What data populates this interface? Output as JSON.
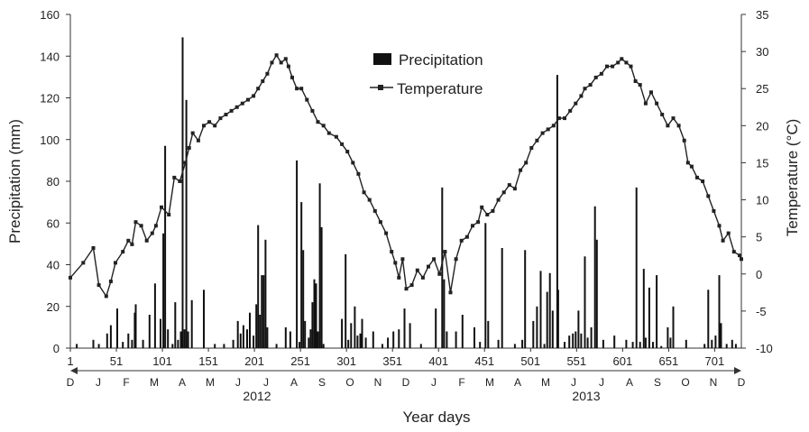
{
  "chart_data": {
    "type": "bar+line",
    "xlabel": "Year days",
    "ylabel_left": "Precipitation (mm)",
    "ylabel_right": "Temperature (°C)",
    "xlim": [
      1,
      730
    ],
    "ylim_left": [
      0,
      160
    ],
    "ylim_right": [
      -10,
      35
    ],
    "x_ticks": [
      1,
      51,
      101,
      151,
      201,
      251,
      301,
      351,
      401,
      451,
      501,
      551,
      601,
      651,
      701
    ],
    "y_ticks_left": [
      0,
      20,
      40,
      60,
      80,
      100,
      120,
      140,
      160
    ],
    "y_ticks_right": [
      -10,
      -5,
      0,
      5,
      10,
      15,
      20,
      25,
      30,
      35
    ],
    "months": [
      "D",
      "J",
      "F",
      "M",
      "A",
      "M",
      "J",
      "J",
      "A",
      "S",
      "O",
      "N",
      "D",
      "J",
      "F",
      "M",
      "A",
      "M",
      "J",
      "J",
      "A",
      "S",
      "O",
      "N",
      "D"
    ],
    "years": [
      {
        "label": "2012",
        "x": 285
      },
      {
        "label": "2013",
        "x": 650
      }
    ],
    "legend": {
      "placement": "top-center",
      "precipitation_label": "Precipitation",
      "temperature_label": "Temperature"
    },
    "series": [
      {
        "name": "Precipitation",
        "kind": "bar",
        "color": "#111111",
        "points": [
          [
            8,
            2
          ],
          [
            26,
            4
          ],
          [
            32,
            2
          ],
          [
            41,
            7
          ],
          [
            45,
            11
          ],
          [
            52,
            19
          ],
          [
            58,
            3
          ],
          [
            64,
            7
          ],
          [
            68,
            4
          ],
          [
            71,
            17
          ],
          [
            72,
            21
          ],
          [
            80,
            4
          ],
          [
            87,
            16
          ],
          [
            93,
            31
          ],
          [
            99,
            14
          ],
          [
            102,
            55
          ],
          [
            104,
            97
          ],
          [
            107,
            9
          ],
          [
            112,
            2
          ],
          [
            115,
            22
          ],
          [
            118,
            4
          ],
          [
            121,
            8
          ],
          [
            123,
            149
          ],
          [
            125,
            9
          ],
          [
            127,
            119
          ],
          [
            129,
            8
          ],
          [
            133,
            23
          ],
          [
            146,
            28
          ],
          [
            158,
            2
          ],
          [
            168,
            2
          ],
          [
            178,
            4
          ],
          [
            183,
            13
          ],
          [
            186,
            7
          ],
          [
            189,
            11
          ],
          [
            193,
            9
          ],
          [
            196,
            17
          ],
          [
            200,
            6
          ],
          [
            203,
            21
          ],
          [
            205,
            59
          ],
          [
            207,
            16
          ],
          [
            209,
            35
          ],
          [
            211,
            35
          ],
          [
            213,
            52
          ],
          [
            215,
            10
          ],
          [
            225,
            2
          ],
          [
            235,
            10
          ],
          [
            240,
            8
          ],
          [
            247,
            90
          ],
          [
            250,
            3
          ],
          [
            252,
            70
          ],
          [
            254,
            47
          ],
          [
            256,
            13
          ],
          [
            260,
            5
          ],
          [
            262,
            9
          ],
          [
            264,
            22
          ],
          [
            266,
            33
          ],
          [
            268,
            31
          ],
          [
            270,
            8
          ],
          [
            272,
            79
          ],
          [
            274,
            58
          ],
          [
            276,
            2
          ],
          [
            296,
            14
          ],
          [
            300,
            45
          ],
          [
            303,
            4
          ],
          [
            306,
            12
          ],
          [
            310,
            20
          ],
          [
            313,
            6
          ],
          [
            316,
            7
          ],
          [
            318,
            14
          ],
          [
            322,
            5
          ],
          [
            330,
            8
          ],
          [
            340,
            2
          ],
          [
            346,
            5
          ],
          [
            352,
            8
          ],
          [
            358,
            9
          ],
          [
            364,
            19
          ],
          [
            370,
            12
          ],
          [
            382,
            2
          ],
          [
            398,
            19
          ],
          [
            405,
            77
          ],
          [
            407,
            33
          ],
          [
            410,
            8
          ],
          [
            420,
            8
          ],
          [
            427,
            16
          ],
          [
            440,
            10
          ],
          [
            446,
            3
          ],
          [
            452,
            60
          ],
          [
            455,
            13
          ],
          [
            466,
            4
          ],
          [
            470,
            48
          ],
          [
            484,
            2
          ],
          [
            492,
            4
          ],
          [
            495,
            47
          ],
          [
            504,
            13
          ],
          [
            508,
            20
          ],
          [
            512,
            37
          ],
          [
            516,
            2
          ],
          [
            519,
            27
          ],
          [
            522,
            36
          ],
          [
            525,
            18
          ],
          [
            530,
            131
          ],
          [
            531,
            28
          ],
          [
            538,
            3
          ],
          [
            543,
            6
          ],
          [
            547,
            7
          ],
          [
            550,
            8
          ],
          [
            553,
            18
          ],
          [
            556,
            7
          ],
          [
            560,
            44
          ],
          [
            563,
            5
          ],
          [
            567,
            10
          ],
          [
            571,
            68
          ],
          [
            573,
            52
          ],
          [
            580,
            4
          ],
          [
            592,
            6
          ],
          [
            605,
            4
          ],
          [
            612,
            3
          ],
          [
            616,
            77
          ],
          [
            620,
            3
          ],
          [
            624,
            38
          ],
          [
            626,
            5
          ],
          [
            630,
            29
          ],
          [
            634,
            3
          ],
          [
            638,
            35
          ],
          [
            643,
            1
          ],
          [
            650,
            10
          ],
          [
            653,
            5
          ],
          [
            656,
            20
          ],
          [
            670,
            4
          ],
          [
            690,
            2
          ],
          [
            694,
            28
          ],
          [
            698,
            4
          ],
          [
            702,
            6
          ],
          [
            706,
            35
          ],
          [
            708,
            12
          ],
          [
            714,
            2
          ],
          [
            720,
            4
          ],
          [
            724,
            2
          ]
        ]
      },
      {
        "name": "Temperature",
        "kind": "line",
        "color": "#222222",
        "points": [
          [
            1,
            -0.5
          ],
          [
            15,
            1.5
          ],
          [
            26,
            3.5
          ],
          [
            32,
            -1.5
          ],
          [
            40,
            -3
          ],
          [
            45,
            -1
          ],
          [
            50,
            1.5
          ],
          [
            58,
            3
          ],
          [
            64,
            4.5
          ],
          [
            68,
            4
          ],
          [
            72,
            7
          ],
          [
            78,
            6.5
          ],
          [
            84,
            4.5
          ],
          [
            90,
            5.5
          ],
          [
            94,
            6.5
          ],
          [
            100,
            9
          ],
          [
            108,
            8
          ],
          [
            114,
            13
          ],
          [
            120,
            12.5
          ],
          [
            126,
            15
          ],
          [
            130,
            17
          ],
          [
            134,
            19
          ],
          [
            140,
            18
          ],
          [
            146,
            20
          ],
          [
            152,
            20.5
          ],
          [
            158,
            20
          ],
          [
            164,
            21
          ],
          [
            170,
            21.5
          ],
          [
            176,
            22
          ],
          [
            182,
            22.5
          ],
          [
            188,
            23
          ],
          [
            194,
            23.5
          ],
          [
            200,
            24
          ],
          [
            205,
            25
          ],
          [
            210,
            26
          ],
          [
            215,
            27
          ],
          [
            220,
            28.5
          ],
          [
            225,
            29.5
          ],
          [
            230,
            28.5
          ],
          [
            235,
            29
          ],
          [
            238,
            28
          ],
          [
            242,
            26.5
          ],
          [
            247,
            25
          ],
          [
            252,
            25
          ],
          [
            258,
            23.5
          ],
          [
            264,
            22
          ],
          [
            270,
            20.5
          ],
          [
            276,
            20
          ],
          [
            282,
            19
          ],
          [
            290,
            18.5
          ],
          [
            296,
            17.5
          ],
          [
            302,
            16.5
          ],
          [
            308,
            15
          ],
          [
            314,
            13.5
          ],
          [
            320,
            11
          ],
          [
            326,
            10
          ],
          [
            332,
            8.5
          ],
          [
            338,
            7
          ],
          [
            344,
            5.5
          ],
          [
            350,
            3
          ],
          [
            354,
            1.5
          ],
          [
            358,
            -0.5
          ],
          [
            362,
            2
          ],
          [
            366,
            -2
          ],
          [
            372,
            -1.5
          ],
          [
            378,
            0.5
          ],
          [
            384,
            -0.5
          ],
          [
            390,
            1
          ],
          [
            396,
            2
          ],
          [
            402,
            0
          ],
          [
            408,
            3
          ],
          [
            414,
            -2.5
          ],
          [
            420,
            2
          ],
          [
            426,
            4.5
          ],
          [
            432,
            5
          ],
          [
            438,
            6.5
          ],
          [
            444,
            7
          ],
          [
            448,
            9
          ],
          [
            454,
            8
          ],
          [
            460,
            8.5
          ],
          [
            466,
            10
          ],
          [
            472,
            11
          ],
          [
            478,
            12
          ],
          [
            484,
            11.5
          ],
          [
            490,
            14
          ],
          [
            496,
            15
          ],
          [
            502,
            17
          ],
          [
            508,
            18
          ],
          [
            514,
            19
          ],
          [
            520,
            19.5
          ],
          [
            526,
            20
          ],
          [
            532,
            21
          ],
          [
            538,
            21
          ],
          [
            544,
            22
          ],
          [
            550,
            23
          ],
          [
            556,
            24
          ],
          [
            560,
            25
          ],
          [
            566,
            25.5
          ],
          [
            572,
            26.5
          ],
          [
            578,
            27
          ],
          [
            584,
            28
          ],
          [
            590,
            28
          ],
          [
            596,
            28.5
          ],
          [
            600,
            29
          ],
          [
            605,
            28.5
          ],
          [
            610,
            28
          ],
          [
            615,
            26
          ],
          [
            620,
            25.5
          ],
          [
            626,
            23
          ],
          [
            632,
            24.5
          ],
          [
            638,
            23
          ],
          [
            644,
            21.5
          ],
          [
            650,
            20
          ],
          [
            656,
            21
          ],
          [
            662,
            20
          ],
          [
            668,
            18
          ],
          [
            672,
            15
          ],
          [
            676,
            14.5
          ],
          [
            682,
            13
          ],
          [
            688,
            12.5
          ],
          [
            694,
            10.5
          ],
          [
            700,
            8.5
          ],
          [
            706,
            6.5
          ],
          [
            710,
            4.5
          ],
          [
            716,
            5.5
          ],
          [
            722,
            3
          ],
          [
            728,
            2.5
          ],
          [
            730,
            2
          ]
        ]
      }
    ]
  }
}
